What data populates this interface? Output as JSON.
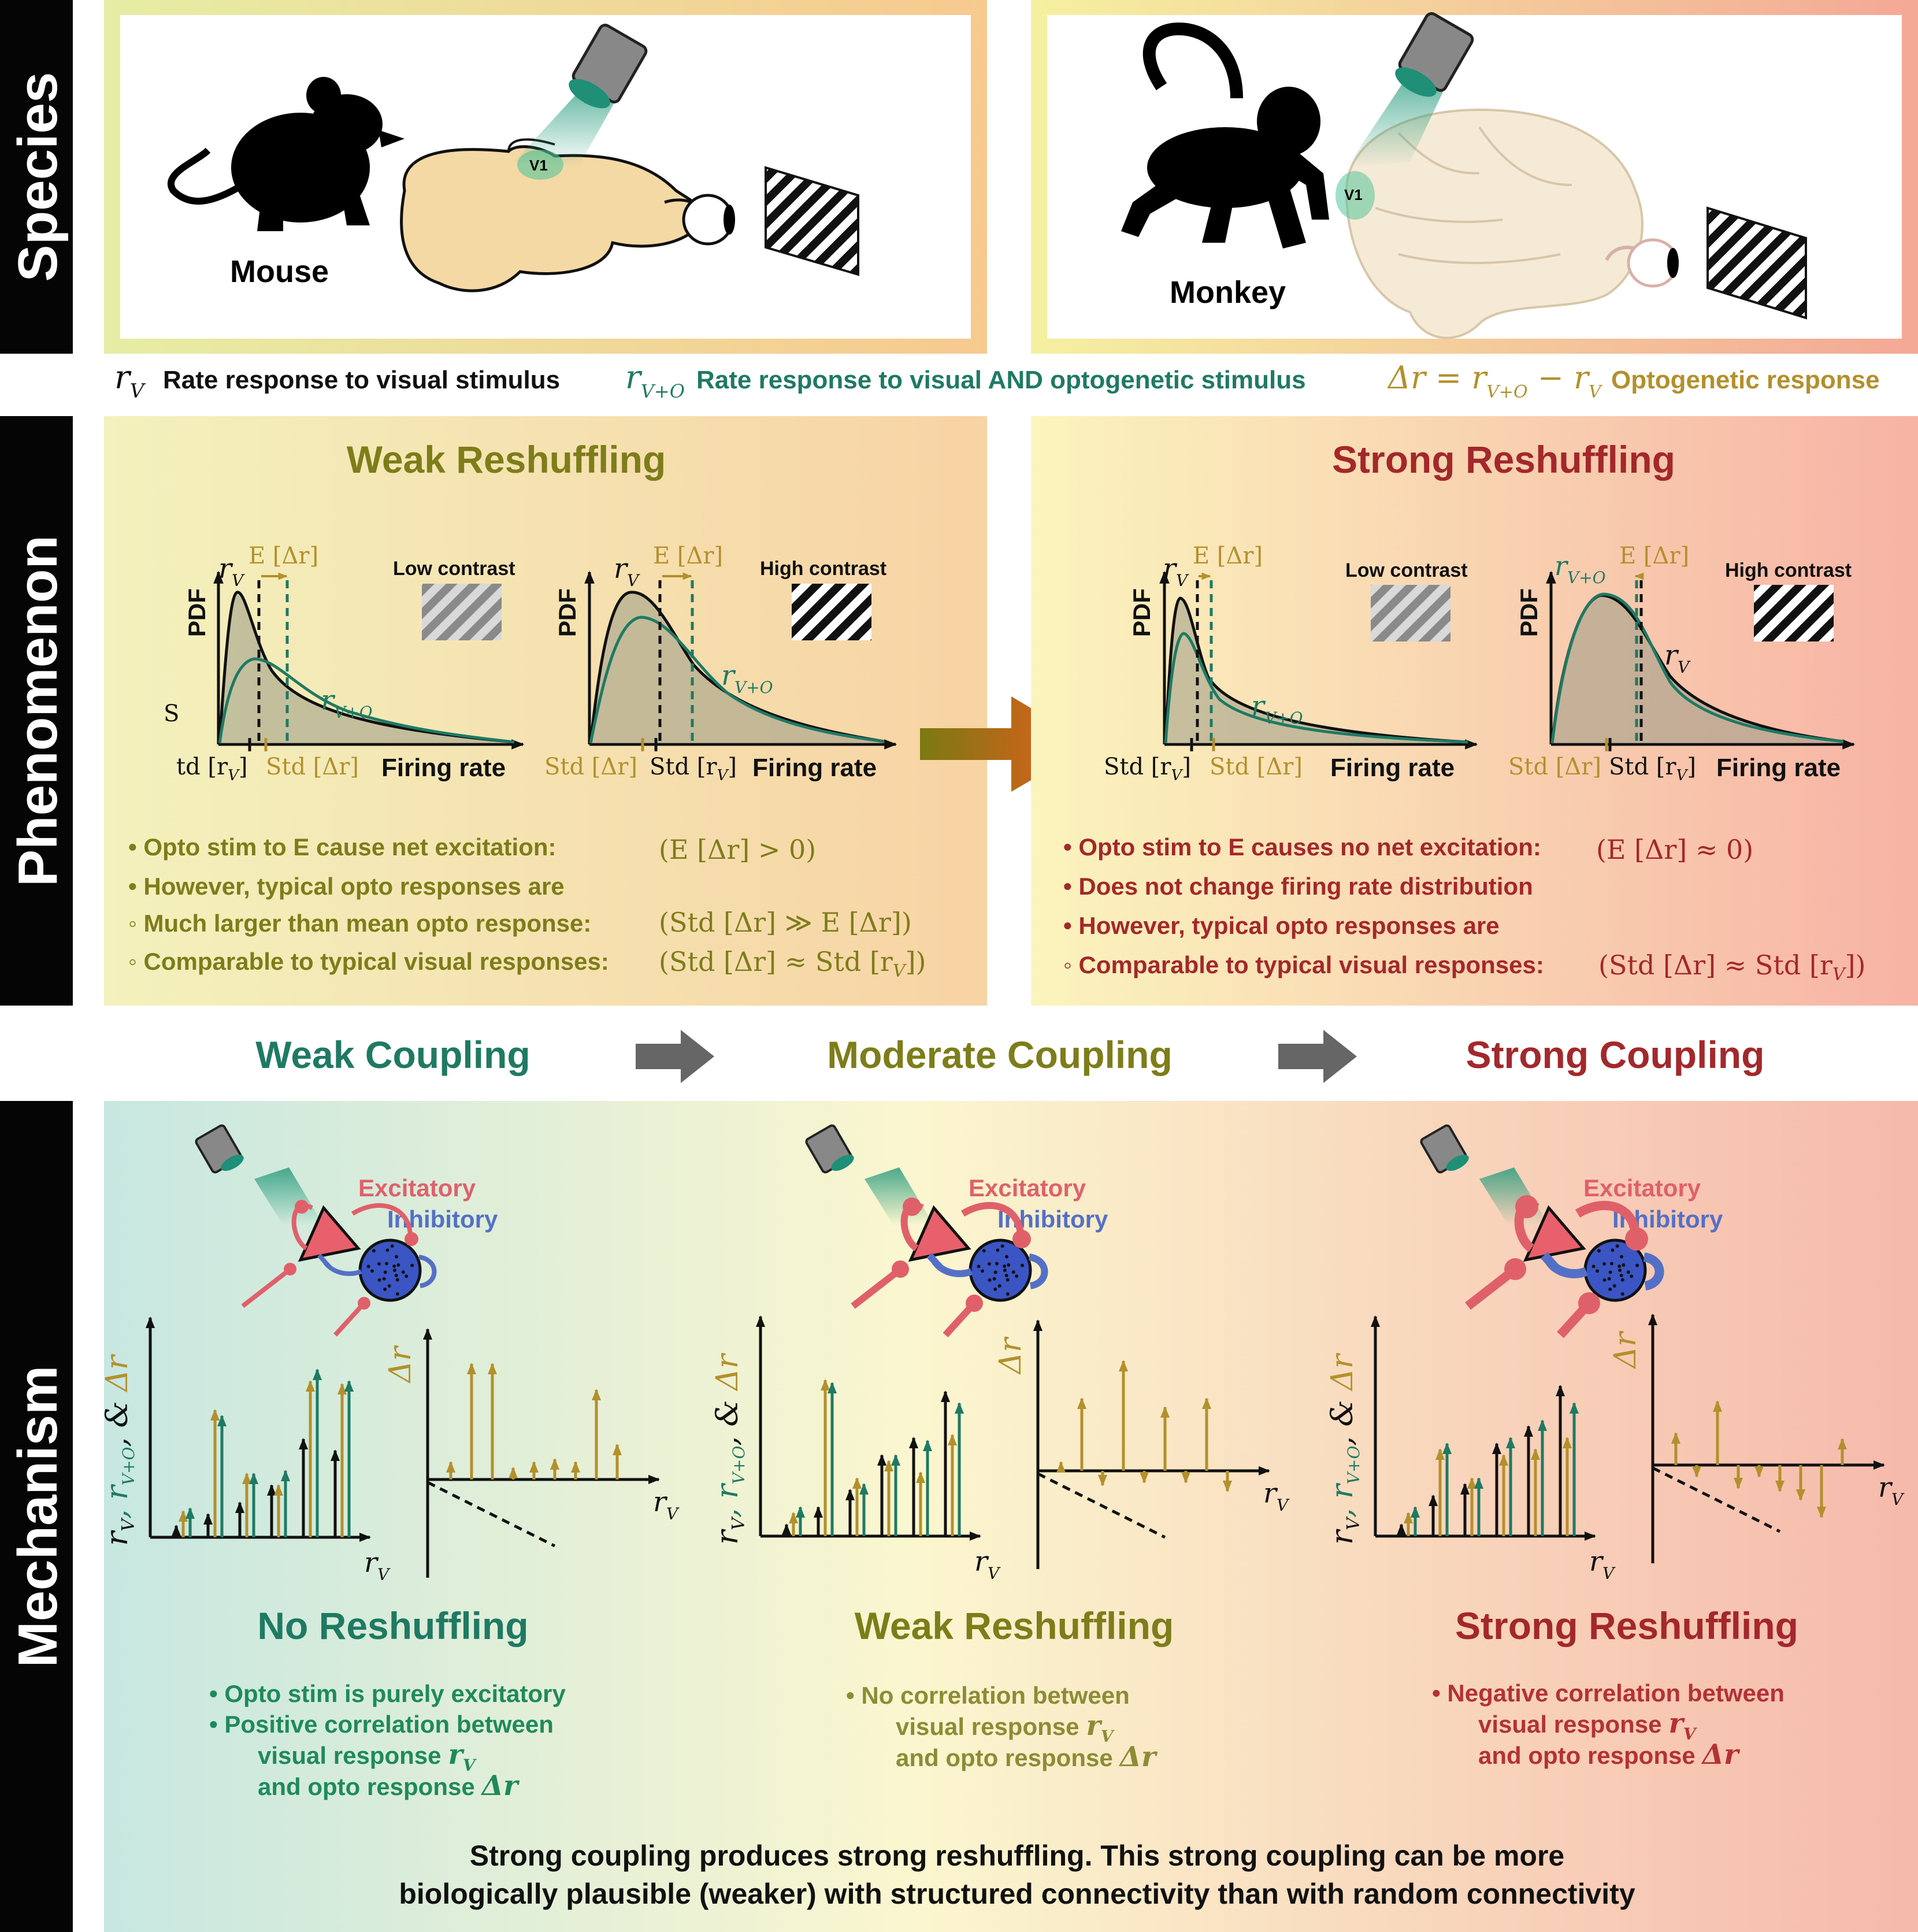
{
  "sections": {
    "species": "Species",
    "phenomenon": "Phenomenon",
    "mechanism": "Mechanism"
  },
  "species": {
    "mouse_label": "Mouse",
    "monkey_label": "Monkey",
    "v1_label": "V1"
  },
  "legend": {
    "rv_symbol": "r",
    "rv_sub": "V",
    "rv_text": "Rate response to visual stimulus",
    "rvo_symbol": "r",
    "rvo_sub": "V+O",
    "rvo_text": "Rate response to visual AND optogenetic stimulus",
    "dr_formula": "Δr = r",
    "dr_formula_sub1": "V+O",
    "dr_formula_mid": " − r",
    "dr_formula_sub2": "V",
    "dr_text": "Optogenetic response"
  },
  "phenomenon": {
    "weak": {
      "title": "Weak Reshuffling",
      "low_contrast": "Low contrast",
      "high_contrast": "High contrast",
      "pdf": "PDF",
      "firing_rate": "Firing rate",
      "e_dr": "E [Δr]",
      "std_rv": "Std [r",
      "std_rv_close": "]",
      "std_dr": "Std [Δr]",
      "td_rv": "td [r",
      "s_letter": "S",
      "rv_label": "r",
      "rvo_label": "r",
      "bullets": [
        {
          "text": "• Opto stim to E cause net excitation:",
          "math": "(E [Δr] > 0)"
        },
        {
          "text": "• However, typical opto responses are",
          "math": ""
        },
        {
          "text": "◦ Much larger than mean opto response:",
          "math": "(Std [Δr] ≫ E [Δr])"
        },
        {
          "text": "◦ Comparable to typical visual responses:",
          "math": "(Std [Δr] ≈ Std [r"
        }
      ]
    },
    "strong": {
      "title": "Strong Reshuffling",
      "low_contrast": "Low contrast",
      "high_contrast": "High contrast",
      "pdf": "PDF",
      "firing_rate": "Firing rate",
      "e_dr": "E [Δr]",
      "std_rv": "Std [r",
      "std_dr": "Std [Δr]",
      "bullets": [
        {
          "text": "• Opto stim to E causes no net excitation:",
          "math": "(E [Δr] ≈ 0)"
        },
        {
          "text": "• Does not change firing rate distribution",
          "math": ""
        },
        {
          "text": "• However, typical opto responses are",
          "math": ""
        },
        {
          "text": "◦ Comparable to typical visual responses:",
          "math": "(Std [Δr] ≈ Std [r"
        }
      ]
    }
  },
  "coupling": {
    "weak": "Weak Coupling",
    "moderate": "Moderate Coupling",
    "strong": "Strong Coupling"
  },
  "mechanism": {
    "excitatory": "Excitatory",
    "inhibitory": "Inhibitory",
    "panels": [
      {
        "title": "No Reshuffling",
        "lines": [
          "• Opto stim is purely excitatory",
          "• Positive correlation between",
          "visual response",
          "and opto response"
        ]
      },
      {
        "title": "Weak Reshuffling",
        "lines": [
          "• No correlation between",
          "visual response",
          "and opto response"
        ]
      },
      {
        "title": "Strong Reshuffling",
        "lines": [
          "• Negative correlation between",
          "visual response",
          "and opto response"
        ]
      }
    ],
    "rv_math": "r",
    "dr_math": "Δr",
    "yaxis_left": "r",
    "yaxis_dr": "Δr"
  },
  "footer": {
    "line1": "Strong coupling produces strong reshuffling. This strong coupling can be more",
    "line2": "biologically plausible (weaker) with structured connectivity than with random connectivity"
  },
  "colors": {
    "weak_olive": "#7d7d1a",
    "strong_red": "#a3282b",
    "teal": "#1f7a63",
    "gold": "#b3902c",
    "excit": "#e0606a",
    "inhib": "#5470c6"
  }
}
